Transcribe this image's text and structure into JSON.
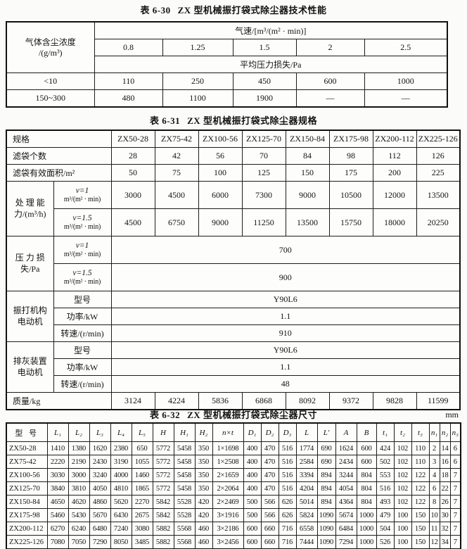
{
  "table30": {
    "title_label": "表 6-30",
    "title_text": "ZX 型机械振打袋式除尘器技术性能",
    "corner_line1": "气体含尘浓度",
    "corner_line2": "/(g/m³)",
    "speed_header": "气速/[m³/(m² · min)]",
    "speeds": [
      "0.8",
      "1.25",
      "1.5",
      "2",
      "2.5"
    ],
    "avg_header": "平均压力损失/Pa",
    "rows": [
      {
        "label": "<10",
        "values": [
          "110",
          "250",
          "450",
          "600",
          "1000"
        ]
      },
      {
        "label": "150~300",
        "values": [
          "480",
          "1100",
          "1900",
          "—",
          "—"
        ]
      }
    ]
  },
  "table31": {
    "title_label": "表 6-31",
    "title_text": "ZX 型机械振打袋式除尘器规格",
    "spec_label": "规格",
    "models": [
      "ZX50-28",
      "ZX75-42",
      "ZX100-56",
      "ZX125-70",
      "ZX150-84",
      "ZX175-98",
      "ZX200-112",
      "ZX225-126"
    ],
    "bag_count": {
      "label": "滤袋个数",
      "values": [
        "28",
        "42",
        "56",
        "70",
        "84",
        "98",
        "112",
        "126"
      ]
    },
    "bag_area": {
      "label": "滤袋有效面积/m²",
      "values": [
        "50",
        "75",
        "100",
        "125",
        "150",
        "175",
        "200",
        "225"
      ]
    },
    "sub_v1": "v=1",
    "sub_v15": "v=1.5",
    "sub_unit": "m³/(m² · min)",
    "capacity": {
      "label_line1": "处 理 能",
      "label_line2": "力/(m³/h)",
      "v1_values": [
        "3000",
        "4500",
        "6000",
        "7300",
        "9000",
        "10500",
        "12000",
        "13500"
      ],
      "v15_values": [
        "4500",
        "6750",
        "9000",
        "11250",
        "13500",
        "15750",
        "18000",
        "20250"
      ]
    },
    "pressure": {
      "label_line1": "压 力 损",
      "label_line2": "失/Pa",
      "v1_value": "700",
      "v15_value": "900"
    },
    "rapping_motor": {
      "label_line1": "振打机构",
      "label_line2": "电动机",
      "model_label": "型号",
      "model_value": "Y90L6",
      "power_label": "功率/kW",
      "power_value": "1.1",
      "speed_label": "转速/(r/min)",
      "speed_value": "910"
    },
    "ash_motor": {
      "label_line1": "排灰装置",
      "label_line2": "电动机",
      "model_label": "型号",
      "model_value": "Y90L6",
      "power_label": "功率/kW",
      "power_value": "1.1",
      "speed_label": "转速/(r/min)",
      "speed_value": "48"
    },
    "mass": {
      "label": "质量/kg",
      "values": [
        "3124",
        "4224",
        "5836",
        "6868",
        "8092",
        "9372",
        "9828",
        "11599"
      ]
    }
  },
  "table32": {
    "title_label": "表 6-32",
    "title_text": "ZX 型机械振打袋式除尘器尺寸",
    "unit": "mm",
    "headers": [
      "型 号",
      "L₁",
      "L₂",
      "L₃",
      "L₄",
      "L₅",
      "H",
      "H₁",
      "H₂",
      "n×t",
      "D₁",
      "D₂",
      "D₃",
      "L",
      "L′",
      "A",
      "B",
      "t₁",
      "t₂",
      "t₃",
      "n₁",
      "n₂",
      "n₃"
    ],
    "rows": [
      [
        "ZX50-28",
        "1410",
        "1380",
        "1620",
        "2380",
        "650",
        "5772",
        "5458",
        "350",
        "1×1698",
        "400",
        "470",
        "516",
        "1774",
        "690",
        "1624",
        "600",
        "424",
        "102",
        "110",
        "2",
        "14",
        "6"
      ],
      [
        "ZX75-42",
        "2220",
        "2190",
        "2430",
        "3190",
        "1055",
        "5772",
        "5458",
        "350",
        "1×2508",
        "400",
        "470",
        "516",
        "2584",
        "690",
        "2434",
        "600",
        "502",
        "102",
        "110",
        "3",
        "16",
        "6"
      ],
      [
        "ZX100-56",
        "3030",
        "3000",
        "3240",
        "4000",
        "1460",
        "5772",
        "5458",
        "350",
        "2×1659",
        "400",
        "470",
        "516",
        "3394",
        "894",
        "3244",
        "804",
        "553",
        "102",
        "122",
        "4",
        "18",
        "7"
      ],
      [
        "ZX125-70",
        "3840",
        "3810",
        "4050",
        "4810",
        "1865",
        "5772",
        "5458",
        "350",
        "2×2064",
        "400",
        "470",
        "516",
        "4204",
        "894",
        "4054",
        "804",
        "516",
        "102",
        "122",
        "6",
        "22",
        "7"
      ],
      [
        "ZX150-84",
        "4650",
        "4620",
        "4860",
        "5620",
        "2270",
        "5842",
        "5528",
        "420",
        "2×2469",
        "500",
        "566",
        "626",
        "5014",
        "894",
        "4364",
        "804",
        "493",
        "102",
        "122",
        "8",
        "26",
        "7"
      ],
      [
        "ZX175-98",
        "5460",
        "5430",
        "5670",
        "6430",
        "2675",
        "5842",
        "5528",
        "420",
        "3×1916",
        "500",
        "566",
        "626",
        "5824",
        "1090",
        "5674",
        "1000",
        "479",
        "100",
        "150",
        "10",
        "30",
        "7"
      ],
      [
        "ZX200-112",
        "6270",
        "6240",
        "6480",
        "7240",
        "3080",
        "5882",
        "5568",
        "460",
        "3×2186",
        "600",
        "660",
        "716",
        "6558",
        "1090",
        "6484",
        "1000",
        "504",
        "100",
        "150",
        "11",
        "32",
        "7"
      ],
      [
        "ZX225-126",
        "7080",
        "7050",
        "7290",
        "8050",
        "3485",
        "5882",
        "5568",
        "460",
        "3×2456",
        "600",
        "660",
        "716",
        "7444",
        "1090",
        "7294",
        "1000",
        "526",
        "100",
        "150",
        "12",
        "34",
        "7"
      ]
    ]
  }
}
